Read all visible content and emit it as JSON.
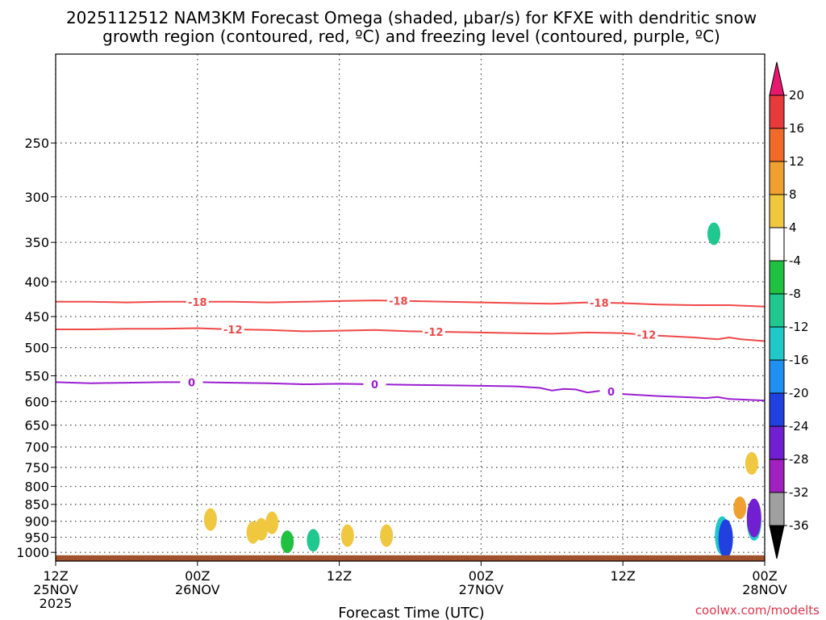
{
  "chart_data": {
    "type": "time-height cross section",
    "title_line1": "2025112512 NAM3KM Forecast Omega (shaded, μbar/s) for KFXE with dendritic snow",
    "title_line2": "growth region (contoured, red, ºC) and freezing level (contoured, purple, ºC)",
    "xlabel": "Forecast Time (UTC)",
    "credit": "coolwx.com/modelts",
    "y_axis": {
      "unit": "hPa",
      "range": [
        1030,
        185
      ],
      "ticks": [
        250,
        300,
        350,
        400,
        450,
        500,
        550,
        600,
        650,
        700,
        750,
        800,
        850,
        900,
        950,
        1000
      ]
    },
    "x_axis": {
      "range_hours": [
        0,
        60
      ],
      "ticks": [
        {
          "hour": 0,
          "line1": "12Z",
          "line2": "25NOV",
          "line3": "2025"
        },
        {
          "hour": 12,
          "line1": "00Z",
          "line2": "26NOV",
          "line3": ""
        },
        {
          "hour": 24,
          "line1": "12Z",
          "line2": "",
          "line3": ""
        },
        {
          "hour": 36,
          "line1": "00Z",
          "line2": "27NOV",
          "line3": ""
        },
        {
          "hour": 48,
          "line1": "12Z",
          "line2": "",
          "line3": ""
        },
        {
          "hour": 60,
          "line1": "00Z",
          "line2": "28NOV",
          "line3": ""
        }
      ]
    },
    "contours": [
      {
        "name": "-18",
        "label": "-18",
        "color": "#f04848",
        "points": [
          [
            0,
            428
          ],
          [
            3,
            428
          ],
          [
            6,
            429
          ],
          [
            9,
            428
          ],
          [
            12,
            428
          ],
          [
            15,
            428
          ],
          [
            18,
            429
          ],
          [
            21,
            428
          ],
          [
            24,
            427
          ],
          [
            27,
            426
          ],
          [
            30,
            427
          ],
          [
            33,
            428
          ],
          [
            36,
            429
          ],
          [
            39,
            430
          ],
          [
            42,
            431
          ],
          [
            45,
            429
          ],
          [
            48,
            430
          ],
          [
            51,
            432
          ],
          [
            54,
            433
          ],
          [
            57,
            433
          ],
          [
            60,
            435
          ]
        ],
        "label_hours": [
          12,
          29,
          46
        ]
      },
      {
        "name": "-12",
        "label": "-12",
        "color": "#f04848",
        "points": [
          [
            0,
            470
          ],
          [
            3,
            470
          ],
          [
            6,
            469
          ],
          [
            9,
            469
          ],
          [
            12,
            468
          ],
          [
            15,
            470
          ],
          [
            18,
            471
          ],
          [
            21,
            473
          ],
          [
            24,
            472
          ],
          [
            27,
            471
          ],
          [
            30,
            473
          ],
          [
            33,
            474
          ],
          [
            36,
            475
          ],
          [
            39,
            476
          ],
          [
            42,
            477
          ],
          [
            45,
            475
          ],
          [
            48,
            476
          ],
          [
            51,
            480
          ],
          [
            54,
            483
          ],
          [
            56,
            486
          ],
          [
            57,
            483
          ],
          [
            58,
            486
          ],
          [
            60,
            489
          ]
        ],
        "label_hours": [
          15,
          32,
          50
        ]
      },
      {
        "name": "0",
        "label": "0",
        "color": "#9b1fd0",
        "points": [
          [
            0,
            562
          ],
          [
            3,
            564
          ],
          [
            6,
            563
          ],
          [
            9,
            562
          ],
          [
            12,
            562
          ],
          [
            15,
            563
          ],
          [
            18,
            564
          ],
          [
            21,
            566
          ],
          [
            24,
            565
          ],
          [
            27,
            566
          ],
          [
            30,
            567
          ],
          [
            33,
            568
          ],
          [
            36,
            569
          ],
          [
            39,
            570
          ],
          [
            41,
            573
          ],
          [
            42,
            578
          ],
          [
            43,
            575
          ],
          [
            44,
            576
          ],
          [
            45,
            582
          ],
          [
            46,
            579
          ],
          [
            47,
            580
          ],
          [
            48,
            585
          ],
          [
            51,
            589
          ],
          [
            54,
            592
          ],
          [
            55,
            593
          ],
          [
            56,
            591
          ],
          [
            57,
            595
          ],
          [
            60,
            598
          ]
        ],
        "label_hours": [
          11.5,
          27,
          47
        ]
      }
    ],
    "omega_shading": [
      {
        "hour": 13.1,
        "pressure": 895,
        "value": 4
      },
      {
        "hour": 16.7,
        "pressure": 935,
        "value": 4
      },
      {
        "hour": 17.4,
        "pressure": 925,
        "value": 4
      },
      {
        "hour": 18.3,
        "pressure": 905,
        "value": 4
      },
      {
        "hour": 19.6,
        "pressure": 965,
        "value": -4
      },
      {
        "hour": 21.8,
        "pressure": 960,
        "value": -8
      },
      {
        "hour": 24.7,
        "pressure": 945,
        "value": 4
      },
      {
        "hour": 28.0,
        "pressure": 945,
        "value": 4
      },
      {
        "hour": 55.7,
        "pressure": 340,
        "value": -8
      },
      {
        "hour": 56.4,
        "pressure": 945,
        "value": -12
      },
      {
        "hour": 56.7,
        "pressure": 955,
        "value": -20
      },
      {
        "hour": 57.9,
        "pressure": 860,
        "value": 8
      },
      {
        "hour": 58.9,
        "pressure": 740,
        "value": 4
      },
      {
        "hour": 59.1,
        "pressure": 900,
        "value": -12
      },
      {
        "hour": 59.1,
        "pressure": 890,
        "value": -24
      }
    ],
    "terrain": {
      "label": "surface",
      "pressure_top": 1010
    },
    "colorbar": {
      "labels": [
        "20",
        "16",
        "12",
        "8",
        "4",
        "-4",
        "-8",
        "-12",
        "-16",
        "-20",
        "-24",
        "-28",
        "-32",
        "-36"
      ],
      "colors": [
        "#e8176e",
        "#e83a3a",
        "#f06a2a",
        "#f0a030",
        "#f0c840",
        "#ffffff",
        "#20c040",
        "#20c890",
        "#20c8c8",
        "#2090f0",
        "#2040e0",
        "#7020d0",
        "#a020c0",
        "#a0a0a0",
        "#000000"
      ]
    }
  }
}
